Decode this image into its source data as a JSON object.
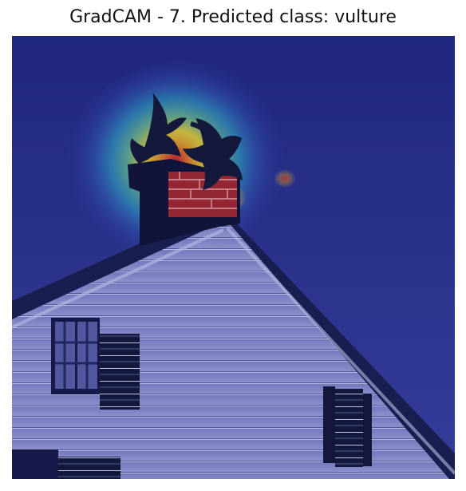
{
  "figure": {
    "title": "GradCAM - 7. Predicted class: vulture"
  },
  "colors": {
    "sky": "#2b318f",
    "sky_light": "#4950b0",
    "house_siding": "#8e91c9",
    "house_shadow": "#2a2f6e",
    "silhouette": "#151833",
    "heat_red": "#d91f1f",
    "heat_yellow": "#f4e12a",
    "heat_cyan": "#36c7d8",
    "heat_blue": "#3c6fd1"
  }
}
